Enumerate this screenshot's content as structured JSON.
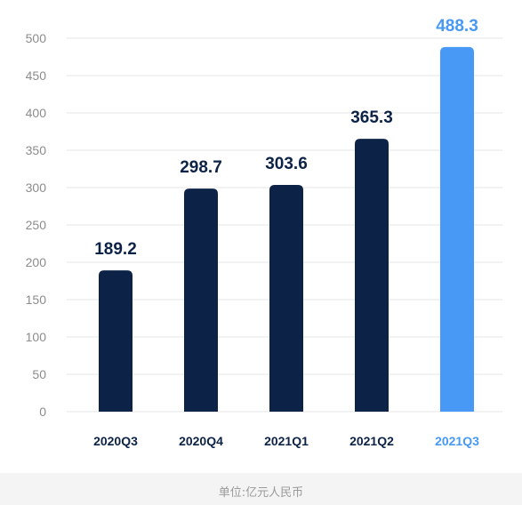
{
  "chart_data": {
    "type": "bar",
    "categories": [
      "2020Q3",
      "2020Q4",
      "2021Q1",
      "2021Q2",
      "2021Q3"
    ],
    "values": [
      189.2,
      298.7,
      303.6,
      365.3,
      488.3
    ],
    "value_labels": [
      "189.2",
      "298.7",
      "303.6",
      "365.3",
      "488.3"
    ],
    "ylim": [
      0,
      500
    ],
    "yticks": [
      0,
      50,
      100,
      150,
      200,
      250,
      300,
      350,
      400,
      450,
      500
    ],
    "grid": true,
    "highlight_index": 4,
    "unit_note": "单位:亿元人民币"
  },
  "colors": {
    "bar": "#0c2347",
    "highlight": "#4799f5",
    "grid": "#e6e6e6",
    "tick_text": "#8c8c8c"
  }
}
